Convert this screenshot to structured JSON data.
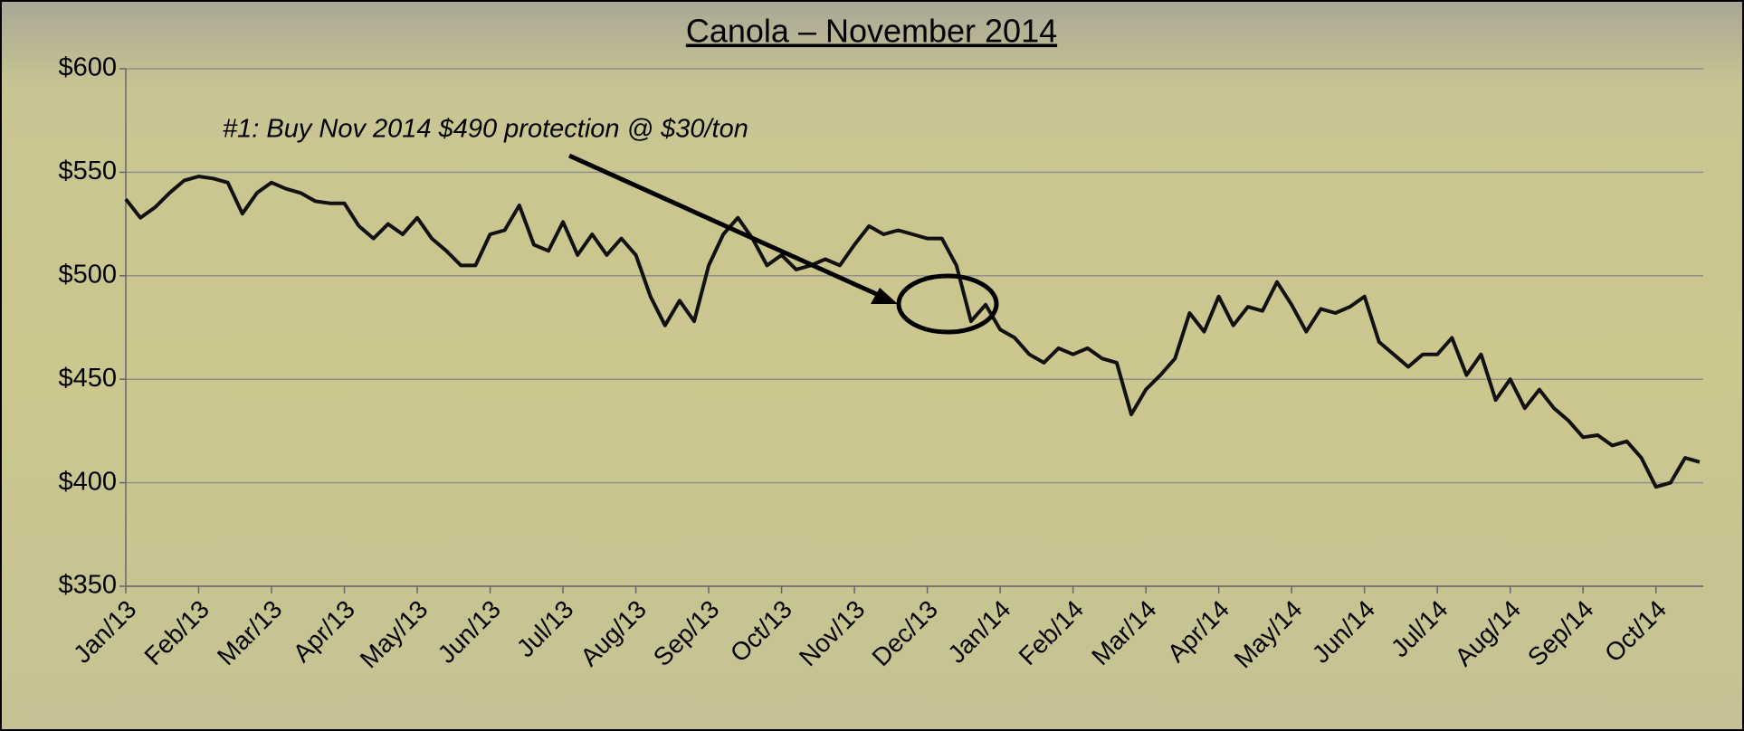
{
  "chart_data": {
    "type": "line",
    "title": "Canola – November 2014",
    "annotation": "#1: Buy Nov 2014 $490 protection @ $30/ton",
    "categories": [
      "Jan/13",
      null,
      null,
      null,
      null,
      "Feb/13",
      null,
      null,
      null,
      null,
      "Mar/13",
      null,
      null,
      null,
      null,
      "Apr/13",
      null,
      null,
      null,
      null,
      "May/13",
      null,
      null,
      null,
      null,
      "Jun/13",
      null,
      null,
      null,
      null,
      "Jul/13",
      null,
      null,
      null,
      null,
      "Aug/13",
      null,
      null,
      null,
      null,
      "Sep/13",
      null,
      null,
      null,
      null,
      "Oct/13",
      null,
      null,
      null,
      null,
      "Nov/13",
      null,
      null,
      null,
      null,
      "Dec/13",
      null,
      null,
      null,
      null,
      "Jan/14",
      null,
      null,
      null,
      null,
      "Feb/14",
      null,
      null,
      null,
      null,
      "Mar/14",
      null,
      null,
      null,
      null,
      "Apr/14",
      null,
      null,
      null,
      null,
      "May/14",
      null,
      null,
      null,
      null,
      "Jun/14",
      null,
      null,
      null,
      null,
      "Jul/14",
      null,
      null,
      null,
      null,
      "Aug/14",
      null,
      null,
      null,
      null,
      "Sep/14",
      null,
      null,
      null,
      null,
      "Oct/14",
      null,
      null,
      null
    ],
    "values": [
      537,
      528,
      533,
      540,
      546,
      548,
      547,
      545,
      530,
      540,
      545,
      542,
      540,
      536,
      535,
      535,
      524,
      518,
      525,
      520,
      528,
      518,
      512,
      505,
      505,
      520,
      522,
      534,
      515,
      512,
      526,
      510,
      520,
      510,
      518,
      510,
      490,
      476,
      488,
      478,
      505,
      520,
      528,
      518,
      505,
      510,
      503,
      505,
      508,
      505,
      515,
      524,
      520,
      522,
      520,
      518,
      518,
      505,
      478,
      486,
      474,
      470,
      462,
      458,
      465,
      462,
      465,
      460,
      458,
      433,
      445,
      452,
      460,
      482,
      473,
      490,
      476,
      485,
      483,
      497,
      486,
      473,
      484,
      482,
      485,
      490,
      468,
      462,
      456,
      462,
      462,
      470,
      452,
      462,
      440,
      450,
      436,
      445,
      436,
      430,
      422,
      423,
      418,
      420,
      412,
      398,
      400,
      412,
      410
    ],
    "color": "#111111",
    "ylim": [
      350,
      600
    ],
    "yticks": [
      {
        "value": 350,
        "label": "$350"
      },
      {
        "value": 400,
        "label": "$400"
      },
      {
        "value": 450,
        "label": "$450"
      },
      {
        "value": 500,
        "label": "$500"
      },
      {
        "value": 550,
        "label": "$550"
      },
      {
        "value": 600,
        "label": "$600"
      }
    ],
    "grid": true
  }
}
